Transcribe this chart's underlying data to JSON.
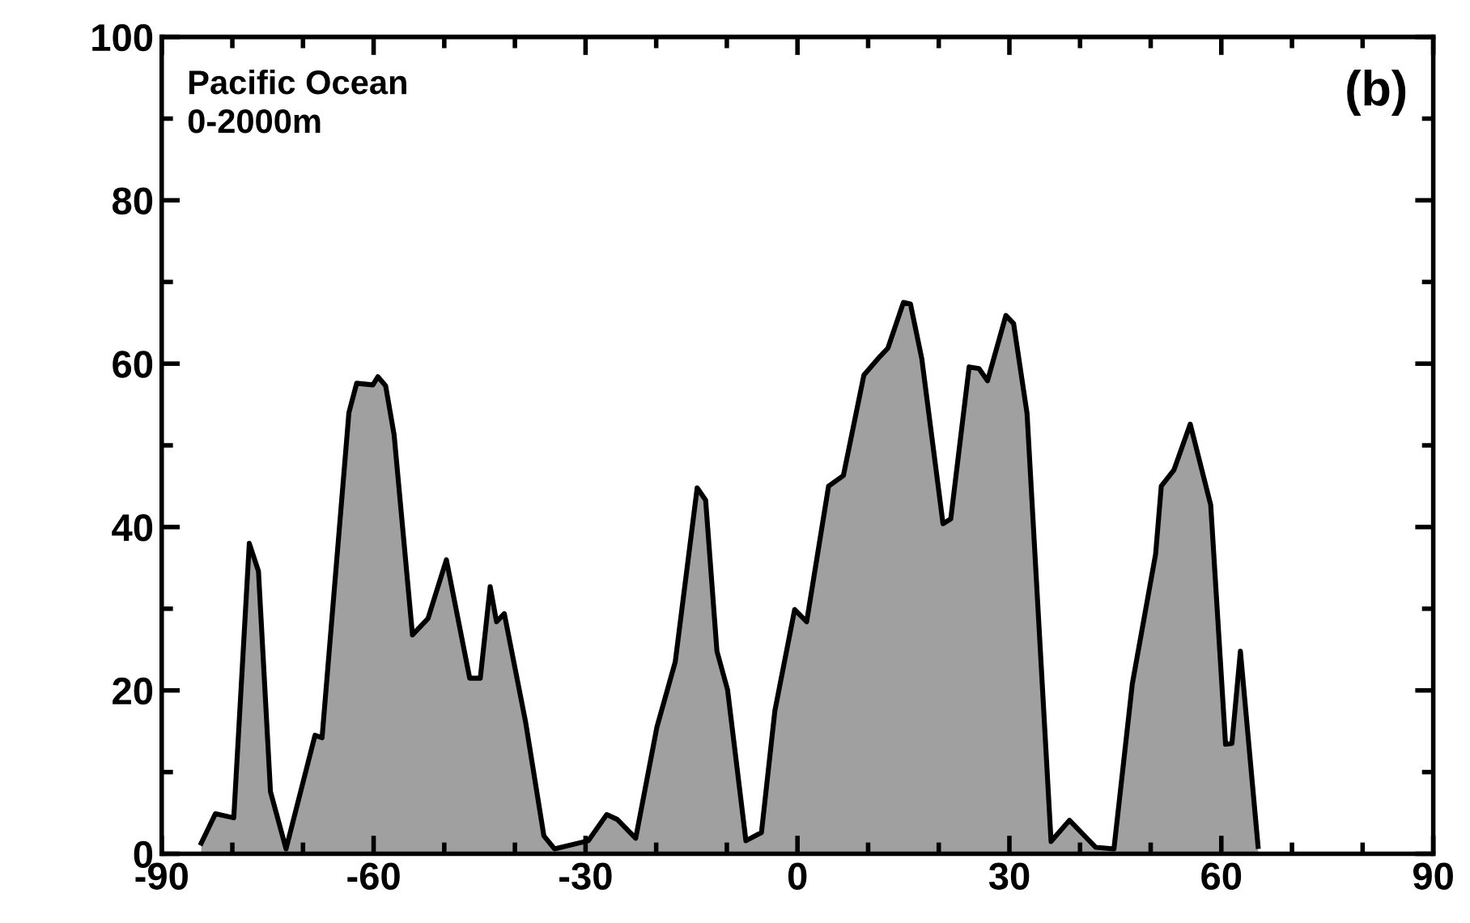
{
  "chart_data": {
    "type": "area",
    "annotations": [
      "Pacific Ocean\n0-2000m",
      "(b)"
    ],
    "x": [
      -84.4,
      -82.4,
      -79.8,
      -77.6,
      -76.3,
      -74.6,
      -72.4,
      -68.3,
      -67.3,
      -63.5,
      -62.4,
      -60.1,
      -59.4,
      -58.3,
      -57.1,
      -54.5,
      -52.3,
      -49.7,
      -46.4,
      -44.9,
      -43.5,
      -42.6,
      -41.5,
      -38.5,
      -35.9,
      -34.4,
      -29.6,
      -27,
      -25.5,
      -22.9,
      -19.9,
      -17.3,
      -14.2,
      -13,
      -11.4,
      -9.9,
      -7.3,
      -5.1,
      -3.2,
      -0.4,
      1.3,
      4.4,
      6.5,
      9.4,
      11.7,
      12.8,
      15,
      16,
      17.6,
      20.6,
      21.7,
      24.3,
      25.7,
      26.9,
      29.5,
      30.6,
      32.5,
      35.9,
      38.5,
      42.2,
      44.8,
      47.4,
      50.7,
      51.5,
      53.3,
      55.6,
      58.5,
      60.6,
      61.5,
      62.7,
      65.2
    ],
    "series": [
      {
        "color": "#a0a0a0",
        "values": [
          1.3,
          4.9,
          4.4,
          38,
          34.6,
          7.6,
          0.6,
          14.5,
          14.2,
          54,
          57.6,
          57.4,
          58.4,
          57.3,
          51.3,
          26.8,
          28.8,
          36,
          21.5,
          21.5,
          32.7,
          28.4,
          29.4,
          16.2,
          2.2,
          0.6,
          1.6,
          4.8,
          4.2,
          1.9,
          15.5,
          23.5,
          44.8,
          43.3,
          24.8,
          20.1,
          1.6,
          2.6,
          17.5,
          29.9,
          28.4,
          45,
          46.3,
          58.6,
          60.9,
          61.9,
          67.5,
          67.3,
          60.6,
          40.4,
          41,
          59.6,
          59.4,
          57.9,
          65.9,
          64.9,
          53.9,
          1.5,
          4.1,
          0.8,
          0.6,
          20.8,
          36.7,
          45,
          47,
          52.6,
          42.7,
          13.4,
          13.5,
          24.8,
          0.9
        ]
      }
    ],
    "xlim": [
      -90,
      90
    ],
    "ylim": [
      0,
      100
    ],
    "xticks": [
      -90,
      {
        "value": -80,
        "label": null
      },
      {
        "value": -70,
        "label": null
      },
      -60,
      {
        "value": -50,
        "label": null
      },
      {
        "value": -40,
        "label": null
      },
      -30,
      {
        "value": -20,
        "label": null
      },
      {
        "value": -10,
        "label": null
      },
      0,
      {
        "value": 10,
        "label": null
      },
      {
        "value": 20,
        "label": null
      },
      30,
      {
        "value": 40,
        "label": null
      },
      {
        "value": 50,
        "label": null
      },
      60,
      {
        "value": 70,
        "label": null
      },
      {
        "value": 80,
        "label": null
      },
      90
    ],
    "yticks": [
      0,
      {
        "value": 10,
        "label": null
      },
      20,
      {
        "value": 30,
        "label": null
      },
      40,
      {
        "value": 50,
        "label": null
      },
      60,
      {
        "value": 70,
        "label": null
      },
      80,
      {
        "value": 90,
        "label": null
      },
      100
    ],
    "grid": false,
    "legend": false
  }
}
